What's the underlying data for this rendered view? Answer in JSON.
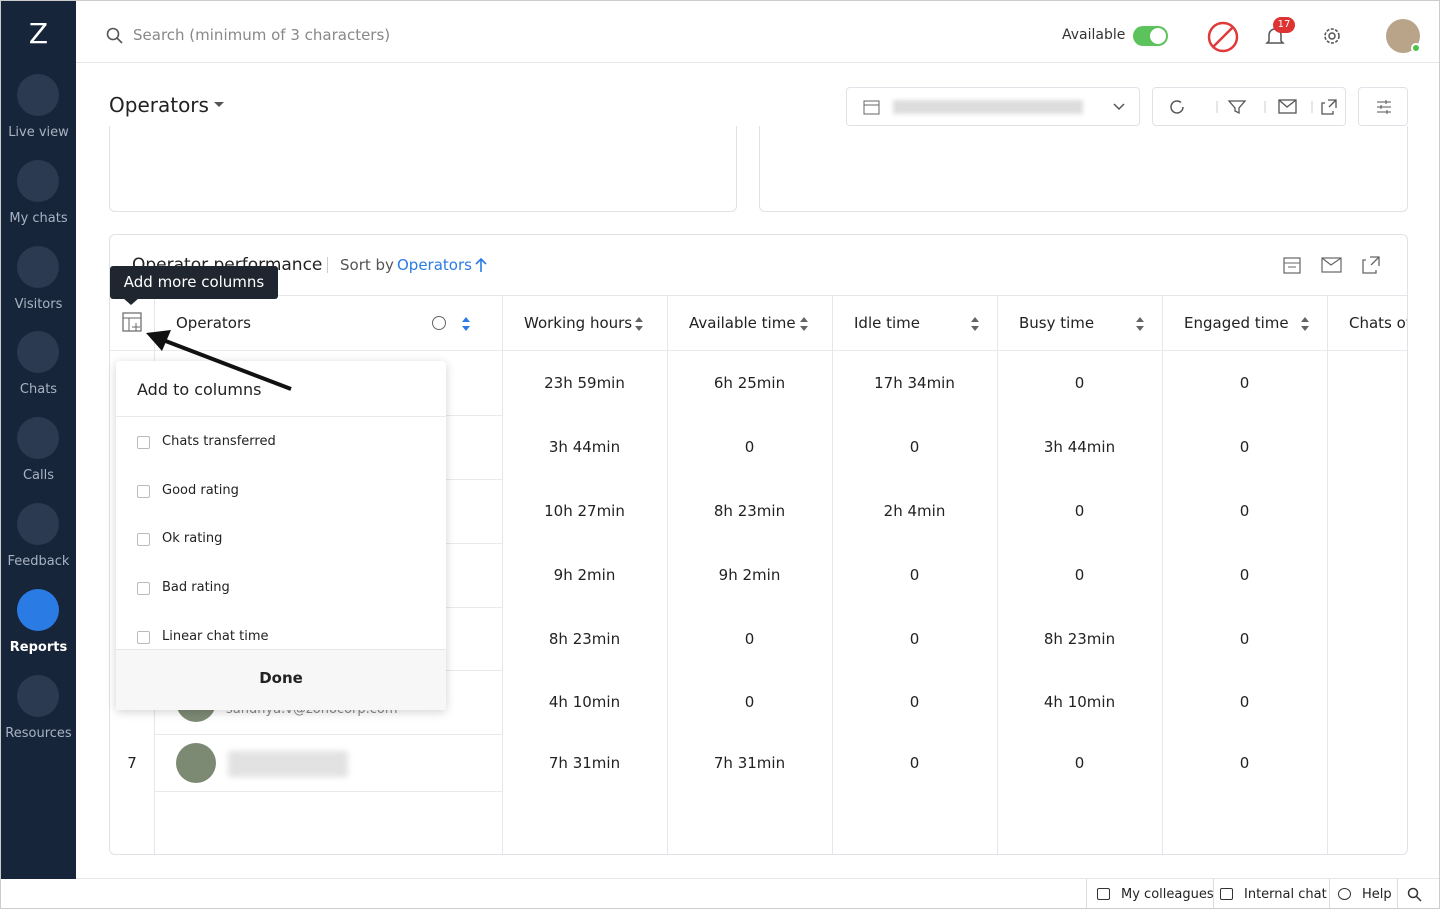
{
  "sidebar": {
    "logo": "Z",
    "nav": [
      "Live view",
      "My chats",
      "Visitors",
      "Chats",
      "Calls",
      "Feedback",
      "Reports",
      "Resources"
    ],
    "active": 6
  },
  "topbar": {
    "search_placeholder": "Search (minimum of 3 characters)",
    "status": "Available",
    "notification_count": "17"
  },
  "header": {
    "title": "Operators"
  },
  "panel": {
    "title": "Operator performance",
    "sort_label": "Sort by",
    "sort_field": "Operators"
  },
  "tooltip": "Add more columns",
  "table": {
    "columns": [
      "Operators",
      "Working hours",
      "Available time",
      "Idle time",
      "Busy time",
      "Engaged time",
      "Chats ov"
    ],
    "rows": [
      {
        "cells": [
          "23h 59min",
          "6h 25min",
          "17h 34min",
          "0",
          "0"
        ]
      },
      {
        "cells": [
          "3h 44min",
          "0",
          "0",
          "3h 44min",
          "0"
        ]
      },
      {
        "cells": [
          "10h 27min",
          "8h 23min",
          "2h 4min",
          "0",
          "0"
        ]
      },
      {
        "cells": [
          "9h 2min",
          "9h 2min",
          "0",
          "0",
          "0"
        ]
      },
      {
        "cells": [
          "8h 23min",
          "0",
          "0",
          "8h 23min",
          "0"
        ]
      },
      {
        "email": "sandhya.v@zohocorp.com",
        "cells": [
          "4h 10min",
          "0",
          "0",
          "4h 10min",
          "0"
        ]
      },
      {
        "number": "7",
        "cells": [
          "7h 31min",
          "7h 31min",
          "0",
          "0",
          "0"
        ]
      }
    ]
  },
  "column_picker": {
    "title": "Add to columns",
    "options": [
      "Chats transferred",
      "Good rating",
      "Ok rating",
      "Bad rating",
      "Linear chat time"
    ],
    "done": "Done"
  },
  "footer": {
    "links": [
      "My colleagues",
      "Internal chat",
      "Help"
    ]
  }
}
